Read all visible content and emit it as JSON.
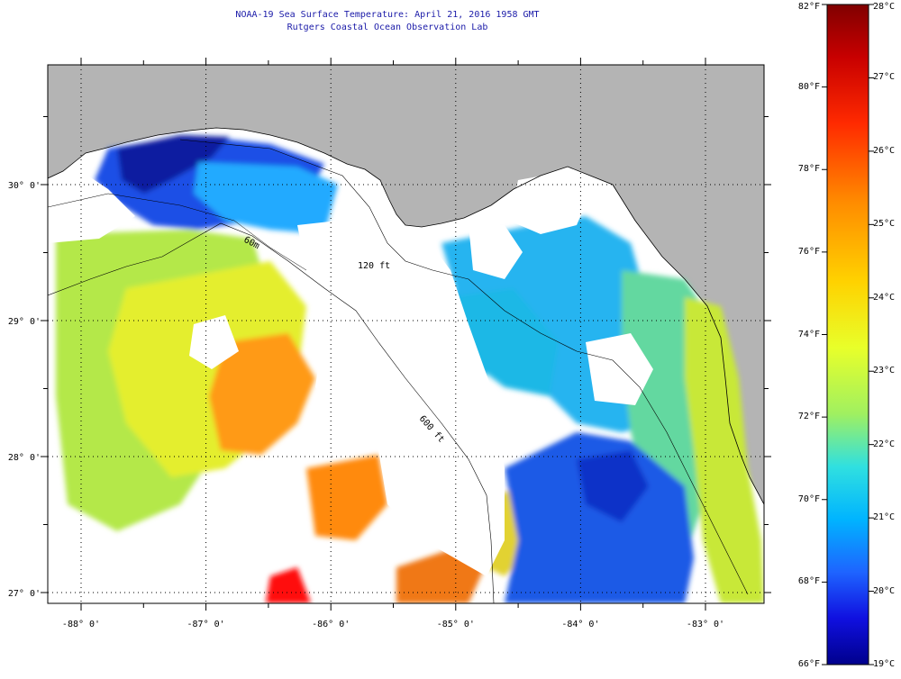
{
  "header": {
    "title": "NOAA-19 Sea Surface Temperature:  April 21, 2016 1958 GMT",
    "subtitle": "Rutgers Coastal Ocean Observation Lab"
  },
  "map": {
    "lon_ticks": [
      {
        "label": "-88° 0'",
        "lon": -88
      },
      {
        "label": "-87° 0'",
        "lon": -87
      },
      {
        "label": "-86° 0'",
        "lon": -86
      },
      {
        "label": "-85° 0'",
        "lon": -85
      },
      {
        "label": "-84° 0'",
        "lon": -84
      },
      {
        "label": "-83° 0'",
        "lon": -83
      }
    ],
    "lat_ticks": [
      {
        "label": "30° 0'",
        "lat": 30
      },
      {
        "label": "29° 0'",
        "lat": 29
      },
      {
        "label": "28° 0'",
        "lat": 28
      },
      {
        "label": "27° 0'",
        "lat": 27
      }
    ],
    "contours": [
      {
        "label": "60m",
        "name": "60m-isobath"
      },
      {
        "label": "120 ft",
        "name": "120ft-isobath"
      },
      {
        "label": "600 ft",
        "name": "600ft-isobath"
      }
    ],
    "colors": {
      "land": "#b4b4b4",
      "no_data": "#ffffff",
      "coast": "#000000"
    }
  },
  "colorbar": {
    "fahrenheit": [
      "82°F",
      "80°F",
      "78°F",
      "76°F",
      "74°F",
      "72°F",
      "70°F",
      "68°F",
      "66°F"
    ],
    "celsius": [
      "28°C",
      "27°C",
      "26°C",
      "25°C",
      "24°C",
      "23°C",
      "22°C",
      "21°C",
      "20°C",
      "19°C"
    ],
    "range_f": [
      66,
      82
    ],
    "range_c": [
      19,
      28
    ]
  }
}
